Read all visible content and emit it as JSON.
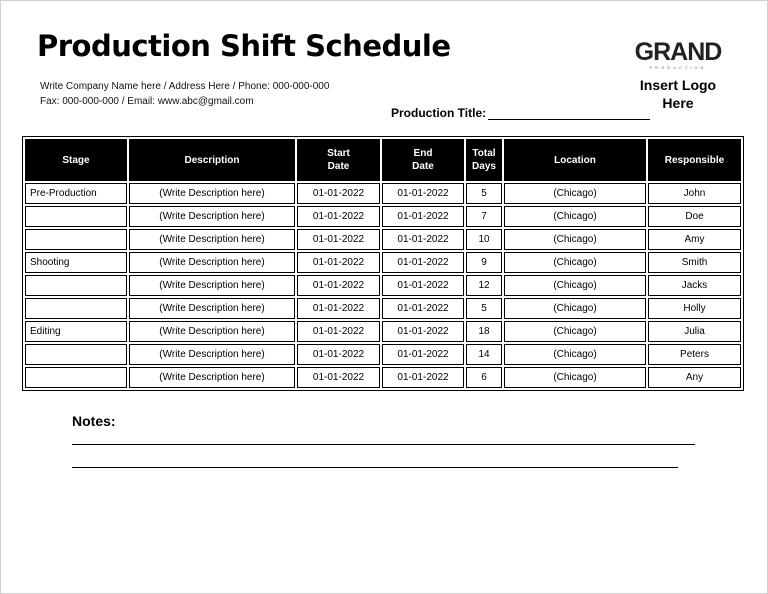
{
  "header": {
    "title": "Production Shift Schedule",
    "company_line": "Write Company Name here / Address Here / Phone: 000-000-000",
    "contact_line": "Fax: 000-000-000 / Email: www.abc@gmail.com",
    "production_title_label": "Production Title:"
  },
  "logo": {
    "word": "GRAND",
    "sub": "PRODUCTION",
    "text_line1": "Insert Logo",
    "text_line2": "Here"
  },
  "table": {
    "headers": [
      "Stage",
      "Description",
      "Start Date",
      "End Date",
      "Total Days",
      "Location",
      "Responsible"
    ],
    "rows": [
      [
        "Pre-Production",
        "(Write Description here)",
        "01-01-2022",
        "01-01-2022",
        "5",
        "(Chicago)",
        "John"
      ],
      [
        "",
        "(Write Description here)",
        "01-01-2022",
        "01-01-2022",
        "7",
        "(Chicago)",
        "Doe"
      ],
      [
        "",
        "(Write Description here)",
        "01-01-2022",
        "01-01-2022",
        "10",
        "(Chicago)",
        "Amy"
      ],
      [
        "Shooting",
        "(Write Description here)",
        "01-01-2022",
        "01-01-2022",
        "9",
        "(Chicago)",
        "Smith"
      ],
      [
        "",
        "(Write Description here)",
        "01-01-2022",
        "01-01-2022",
        "12",
        "(Chicago)",
        "Jacks"
      ],
      [
        "",
        "(Write Description here)",
        "01-01-2022",
        "01-01-2022",
        "5",
        "(Chicago)",
        "Holly"
      ],
      [
        "Editing",
        "(Write Description here)",
        "01-01-2022",
        "01-01-2022",
        "18",
        "(Chicago)",
        "Julia"
      ],
      [
        "",
        "(Write Description here)",
        "01-01-2022",
        "01-01-2022",
        "14",
        "(Chicago)",
        "Peters"
      ],
      [
        "",
        "(Write Description here)",
        "01-01-2022",
        "01-01-2022",
        "6",
        "(Chicago)",
        "Any"
      ]
    ]
  },
  "notes": {
    "label": "Notes:"
  }
}
